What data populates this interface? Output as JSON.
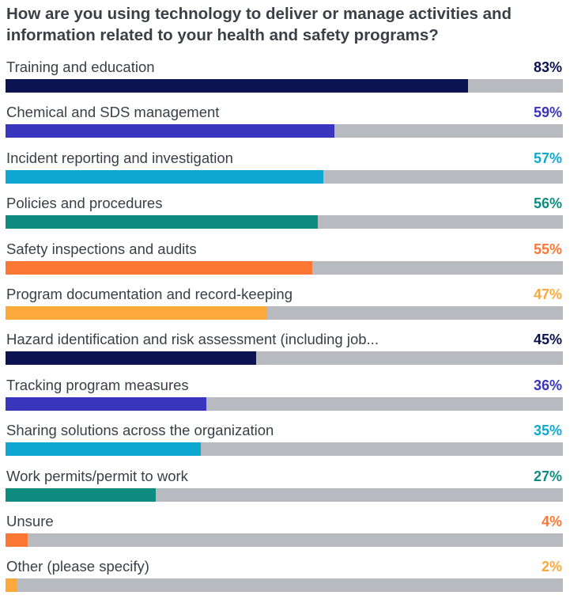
{
  "chart_data": {
    "type": "bar",
    "orientation": "horizontal",
    "title": "How are you using technology to deliver or manage activities and information related to your health and safety programs?",
    "xlim": [
      0,
      100
    ],
    "track_color": "#b7bbc0",
    "items": [
      {
        "label": "Training and education",
        "value": 83,
        "display": "83%",
        "color": "#0b1450",
        "text_color": "#0b1450"
      },
      {
        "label": "Chemical and SDS management",
        "value": 59,
        "display": "59%",
        "color": "#3a35bd",
        "text_color": "#3a35bd"
      },
      {
        "label": "Incident reporting and investigation",
        "value": 57,
        "display": "57%",
        "color": "#0fa8d2",
        "text_color": "#0fa8d2"
      },
      {
        "label": "Policies and procedures",
        "value": 56,
        "display": "56%",
        "color": "#0d8c7f",
        "text_color": "#0d8c7f"
      },
      {
        "label": "Safety inspections and audits",
        "value": 55,
        "display": "55%",
        "color": "#fb7733",
        "text_color": "#fb7733"
      },
      {
        "label": "Program documentation and record-keeping",
        "value": 47,
        "display": "47%",
        "color": "#fba93a",
        "text_color": "#fba93a"
      },
      {
        "label": "Hazard identification and risk assessment (including job...",
        "value": 45,
        "display": "45%",
        "color": "#0b1450",
        "text_color": "#0b1450"
      },
      {
        "label": "Tracking program measures",
        "value": 36,
        "display": "36%",
        "color": "#3a35bd",
        "text_color": "#3a35bd"
      },
      {
        "label": "Sharing solutions across the organization",
        "value": 35,
        "display": "35%",
        "color": "#0fa8d2",
        "text_color": "#0fa8d2"
      },
      {
        "label": "Work permits/permit to work",
        "value": 27,
        "display": "27%",
        "color": "#0d8c7f",
        "text_color": "#0d8c7f"
      },
      {
        "label": "Unsure",
        "value": 4,
        "display": "4%",
        "color": "#fb7733",
        "text_color": "#fb7733"
      },
      {
        "label": "Other (please specify)",
        "value": 2,
        "display": "2%",
        "color": "#fba93a",
        "text_color": "#fba93a"
      }
    ]
  }
}
